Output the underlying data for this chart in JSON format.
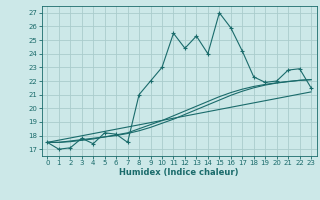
{
  "xlabel": "Humidex (Indice chaleur)",
  "bg_color": "#cce8e8",
  "grid_color": "#aacccc",
  "line_color": "#1a6b6b",
  "xlim": [
    -0.5,
    23.5
  ],
  "ylim": [
    16.5,
    27.5
  ],
  "x_ticks": [
    0,
    1,
    2,
    3,
    4,
    5,
    6,
    7,
    8,
    9,
    10,
    11,
    12,
    13,
    14,
    15,
    16,
    17,
    18,
    19,
    20,
    21,
    22,
    23
  ],
  "y_ticks": [
    17,
    18,
    19,
    20,
    21,
    22,
    23,
    24,
    25,
    26,
    27
  ],
  "main_line": {
    "x": [
      0,
      1,
      2,
      3,
      4,
      5,
      6,
      7,
      8,
      9,
      10,
      11,
      12,
      13,
      14,
      15,
      16,
      17,
      18,
      19,
      20,
      21,
      22,
      23
    ],
    "y": [
      17.5,
      17.0,
      17.1,
      17.8,
      17.4,
      18.2,
      18.1,
      17.5,
      21.0,
      22.0,
      23.0,
      25.5,
      24.4,
      25.3,
      24.0,
      27.0,
      25.9,
      24.2,
      22.3,
      21.9,
      22.0,
      22.8,
      22.9,
      21.5
    ]
  },
  "smooth_line1": {
    "x": [
      0,
      1,
      2,
      3,
      4,
      5,
      6,
      7,
      8,
      9,
      10,
      11,
      12,
      13,
      14,
      15,
      16,
      17,
      18,
      19,
      20,
      21,
      22,
      23
    ],
    "y": [
      17.5,
      17.5,
      17.6,
      17.7,
      17.8,
      17.9,
      18.0,
      18.15,
      18.35,
      18.6,
      18.9,
      19.2,
      19.55,
      19.9,
      20.25,
      20.6,
      20.95,
      21.25,
      21.5,
      21.7,
      21.85,
      21.95,
      22.05,
      22.1
    ]
  },
  "smooth_line2": {
    "x": [
      0,
      1,
      2,
      3,
      4,
      5,
      6,
      7,
      8,
      9,
      10,
      11,
      12,
      13,
      14,
      15,
      16,
      17,
      18,
      19,
      20,
      21,
      22,
      23
    ],
    "y": [
      17.5,
      17.5,
      17.55,
      17.65,
      17.75,
      17.9,
      18.05,
      18.2,
      18.5,
      18.8,
      19.1,
      19.45,
      19.8,
      20.15,
      20.5,
      20.85,
      21.15,
      21.4,
      21.6,
      21.75,
      21.87,
      21.97,
      22.05,
      22.1
    ]
  },
  "smooth_line3": {
    "x": [
      0,
      23
    ],
    "y": [
      17.5,
      21.2
    ]
  },
  "label_fontsize": 5.0,
  "xlabel_fontsize": 6.0
}
